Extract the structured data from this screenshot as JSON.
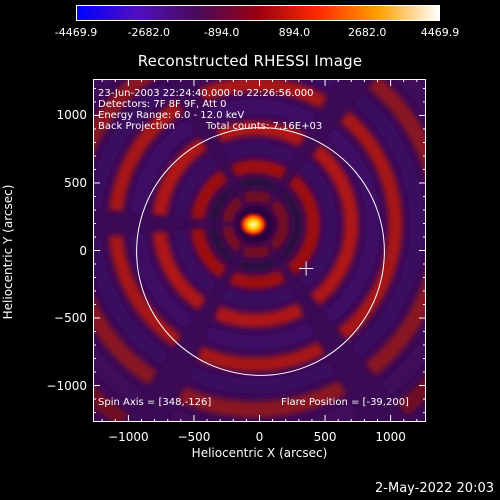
{
  "colorbar": {
    "tick_labels": [
      "-4469.9",
      "-2682.0",
      "-894.0",
      "894.0",
      "2682.0",
      "4469.9"
    ],
    "colors": [
      "#0000ff",
      "#5010c0",
      "#4a0a5a",
      "#9a0010",
      "#ff2a00",
      "#ffa000",
      "#ffffff"
    ]
  },
  "title": "Reconstructed RHESSI Image",
  "annotations": {
    "time": "23-Jun-2003 22:24:40.000 to 22:26:56.000",
    "detectors": "Detectors: 7F 8F 9F, Att 0",
    "energy": "Energy Range: 6.0 - 12.0 keV",
    "method": "Back Projection",
    "counts": "Total counts: 7.16E+03",
    "spin_axis": "Spin Axis = [348,-126]",
    "flare_position": "Flare Position = [-39,200]"
  },
  "axes": {
    "xlabel": "Heliocentric X (arcsec)",
    "ylabel": "Heliocentric Y (arcsec)",
    "xlim": [
      -1270,
      1270
    ],
    "ylim": [
      -1270,
      1270
    ],
    "xticks": [
      -1000,
      -500,
      0,
      500,
      1000
    ],
    "yticks": [
      1000,
      500,
      0,
      -500,
      -1000
    ],
    "xtick_labels": [
      "−1000",
      "−500",
      "0",
      "500",
      "1000"
    ],
    "ytick_labels": [
      "1000",
      "500",
      "0",
      "−500",
      "−1000"
    ]
  },
  "image": {
    "source_center": [
      -39,
      200
    ],
    "spin_axis": [
      348,
      -126
    ],
    "solar_radius_arcsec": 945
  },
  "footer": {
    "date": "2-May-2022 20:03"
  }
}
